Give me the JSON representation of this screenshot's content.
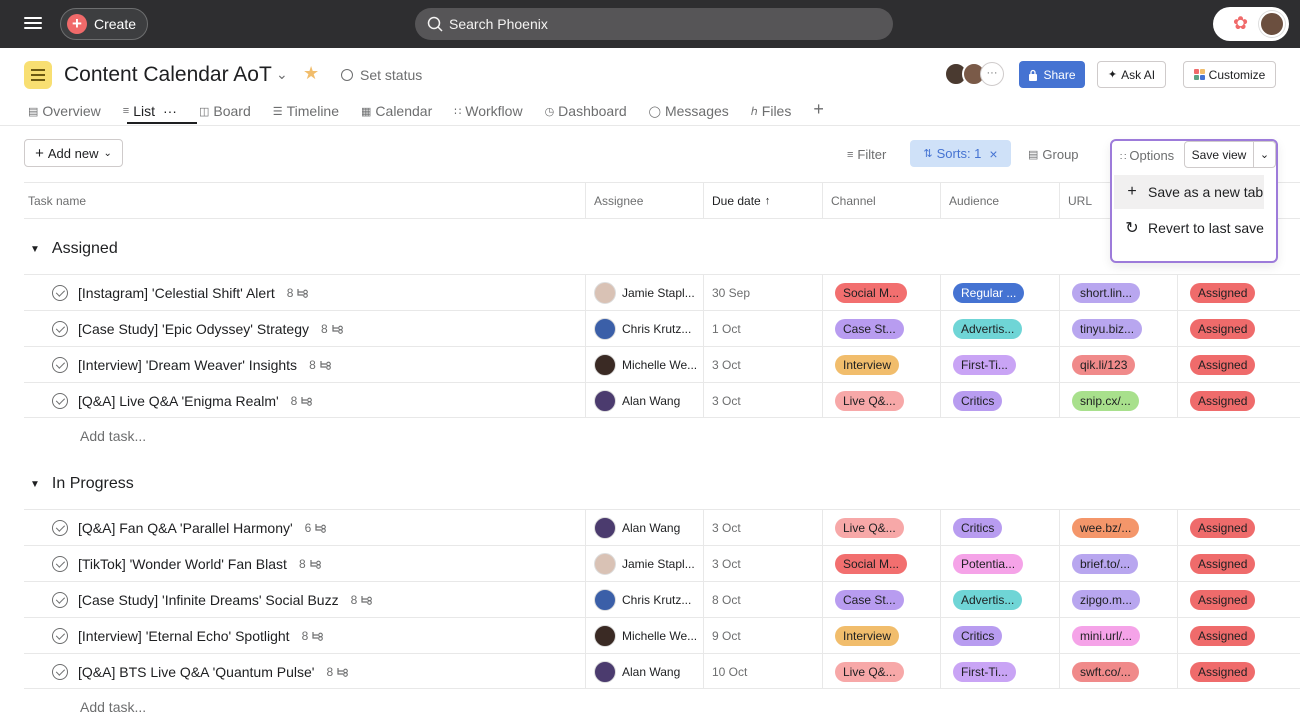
{
  "topbar": {
    "create_label": "Create",
    "search_placeholder": "Search Phoenix"
  },
  "project": {
    "title": "Content Calendar AoT",
    "set_status": "Set status",
    "share": "Share",
    "ask_ai": "Ask AI",
    "customize": "Customize",
    "more_avatars": "···"
  },
  "tabs": [
    "Overview",
    "List",
    "Board",
    "Timeline",
    "Calendar",
    "Workflow",
    "Dashboard",
    "Messages",
    "Files"
  ],
  "toolbar": {
    "add_new": "Add new",
    "filter": "Filter",
    "sorts": "Sorts: 1",
    "group": "Group",
    "options": "Options",
    "save_view": "Save view"
  },
  "save_menu": {
    "save_new_tab": "Save as a new tab",
    "revert": "Revert to last save"
  },
  "columns": [
    "Task name",
    "Assignee",
    "Due date",
    "Channel",
    "Audience",
    "URL"
  ],
  "sections": [
    {
      "name": "Assigned",
      "add_task": "Add task..."
    },
    {
      "name": "In Progress",
      "add_task": "Add task..."
    }
  ],
  "rows": [
    {
      "name": "[Instagram] 'Celestial Shift' Alert",
      "sub": "8",
      "assignee": "Jamie Stapl...",
      "due": "30 Sep",
      "channel": "Social M...",
      "audience": "Regular ...",
      "url": "short.lin...",
      "status": "Assigned"
    },
    {
      "name": "[Case Study] 'Epic Odyssey' Strategy",
      "sub": "8",
      "assignee": "Chris Krutz...",
      "due": "1 Oct",
      "channel": "Case St...",
      "audience": "Advertis...",
      "url": "tinyu.biz...",
      "status": "Assigned"
    },
    {
      "name": "[Interview] 'Dream Weaver' Insights",
      "sub": "8",
      "assignee": "Michelle We...",
      "due": "3 Oct",
      "channel": "Interview",
      "audience": "First-Ti...",
      "url": "qik.li/123",
      "status": "Assigned"
    },
    {
      "name": "[Q&A] Live Q&A 'Enigma Realm'",
      "sub": "8",
      "assignee": "Alan Wang",
      "due": "3 Oct",
      "channel": "Live Q&...",
      "audience": "Critics",
      "url": "snip.cx/...",
      "status": "Assigned"
    },
    {
      "name": "[Q&A] Fan Q&A 'Parallel Harmony'",
      "sub": "6",
      "assignee": "Alan Wang",
      "due": "3 Oct",
      "channel": "Live Q&...",
      "audience": "Critics",
      "url": "wee.bz/...",
      "status": "Assigned"
    },
    {
      "name": "[TikTok] 'Wonder World' Fan Blast",
      "sub": "8",
      "assignee": "Jamie Stapl...",
      "due": "3 Oct",
      "channel": "Social M...",
      "audience": "Potentia...",
      "url": "brief.to/...",
      "status": "Assigned"
    },
    {
      "name": "[Case Study] 'Infinite Dreams' Social Buzz",
      "sub": "8",
      "assignee": "Chris Krutz...",
      "due": "8 Oct",
      "channel": "Case St...",
      "audience": "Advertis...",
      "url": "zipgo.m...",
      "status": "Assigned"
    },
    {
      "name": "[Interview] 'Eternal Echo' Spotlight",
      "sub": "8",
      "assignee": "Michelle We...",
      "due": "9 Oct",
      "channel": "Interview",
      "audience": "Critics",
      "url": "mini.url/...",
      "status": "Assigned"
    },
    {
      "name": "[Q&A] BTS Live Q&A 'Quantum Pulse'",
      "sub": "8",
      "assignee": "Alan Wang",
      "due": "10 Oct",
      "channel": "Live Q&...",
      "audience": "First-Ti...",
      "url": "swft.co/...",
      "status": "Assigned"
    }
  ],
  "colors": {
    "social": "#f26f6f",
    "case": "#b89cf0",
    "interview": "#f1bd6c",
    "live": "#f7a8a8",
    "regular": "#4573d2",
    "advertis": "#6fd5d6",
    "firstti": "#c9a4f5",
    "critics": "#b89cf0",
    "potentia": "#f5a3e8",
    "url_purple": "#b8a6ef",
    "url_red": "#f08a8a",
    "url_green": "#a8e08c",
    "url_orange": "#f4966a",
    "url_pink": "#f5a3e8",
    "status": "#ef6b6b"
  }
}
